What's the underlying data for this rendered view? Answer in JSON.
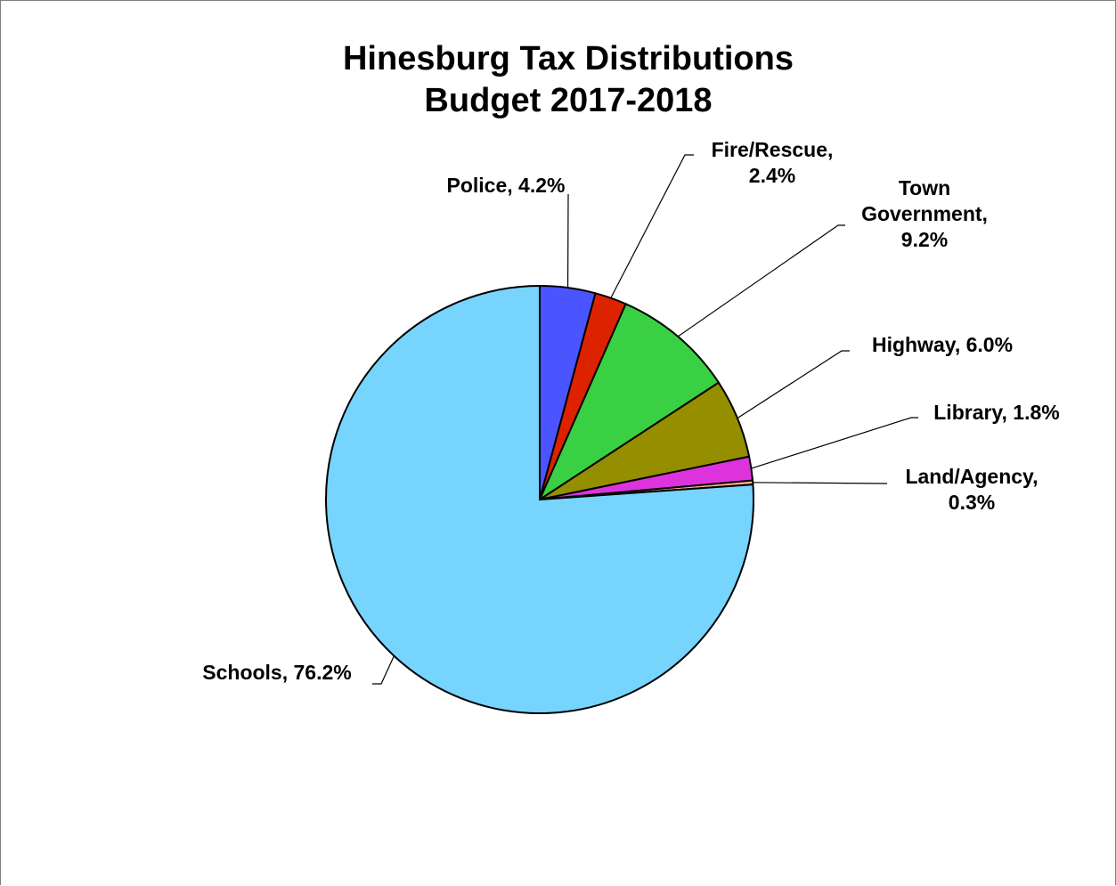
{
  "chart_data": {
    "type": "pie",
    "title": [
      "Hinesburg Tax Distributions",
      "Budget 2017-2018"
    ],
    "slices": [
      {
        "name": "Police",
        "value": 4.2,
        "label_lines": [
          "Police, 4.2%"
        ],
        "color": "#4a55ff"
      },
      {
        "name": "Fire/Rescue",
        "value": 2.4,
        "label_lines": [
          "Fire/Rescue,",
          "2.4%"
        ],
        "color": "#dd2200"
      },
      {
        "name": "Town Government",
        "value": 9.2,
        "label_lines": [
          "Town",
          "Government,",
          "9.2%"
        ],
        "color": "#39d044"
      },
      {
        "name": "Highway",
        "value": 6.0,
        "label_lines": [
          "Highway, 6.0%"
        ],
        "color": "#958f00"
      },
      {
        "name": "Library",
        "value": 1.8,
        "label_lines": [
          "Library, 1.8%"
        ],
        "color": "#dd33dd"
      },
      {
        "name": "Land/Agency",
        "value": 0.3,
        "label_lines": [
          "Land/Agency,",
          "0.3%"
        ],
        "color": "#ffb088"
      },
      {
        "name": "Schools",
        "value": 76.2,
        "label_lines": [
          "Schools, 76.2%"
        ],
        "color": "#76d4fd"
      }
    ],
    "start_angle": "12 o'clock",
    "direction": "clockwise",
    "data_labels": "outside with leader lines",
    "legend": "none"
  }
}
